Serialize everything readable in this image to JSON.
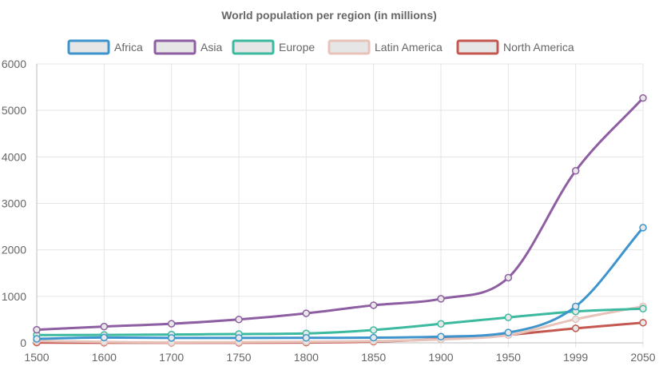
{
  "chart_data": {
    "type": "line",
    "title": "World population per region (in millions)",
    "categories": [
      "1500",
      "1600",
      "1700",
      "1750",
      "1800",
      "1850",
      "1900",
      "1950",
      "1999",
      "2050"
    ],
    "ylim": [
      0,
      6000
    ],
    "yticks": [
      0,
      1000,
      2000,
      3000,
      4000,
      5000,
      6000
    ],
    "grid": true,
    "legend_position": "top",
    "series": [
      {
        "name": "Africa",
        "color": "#3e95cd",
        "values": [
          86,
          114,
          106,
          106,
          107,
          111,
          133,
          221,
          783,
          2478
        ]
      },
      {
        "name": "Asia",
        "color": "#8e5ea2",
        "values": [
          282,
          350,
          411,
          502,
          635,
          809,
          947,
          1402,
          3700,
          5267
        ]
      },
      {
        "name": "Europe",
        "color": "#3cba9f",
        "values": [
          168,
          170,
          178,
          190,
          203,
          276,
          408,
          547,
          675,
          734
        ]
      },
      {
        "name": "Latin America",
        "color": "#e8c3b9",
        "values": [
          40,
          20,
          10,
          16,
          24,
          38,
          74,
          167,
          508,
          784
        ]
      },
      {
        "name": "North America",
        "color": "#c45850",
        "values": [
          6,
          3,
          2,
          2,
          7,
          26,
          82,
          172,
          312,
          433
        ]
      }
    ]
  }
}
